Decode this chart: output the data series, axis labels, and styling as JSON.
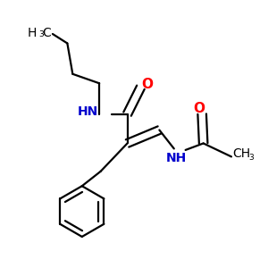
{
  "bg_color": "#ffffff",
  "bond_color": "#000000",
  "N_color": "#0000cd",
  "O_color": "#ff0000",
  "line_width": 1.6,
  "font_size_label": 10,
  "font_size_sub": 6.5,
  "figsize": [
    3.0,
    3.0
  ],
  "dpi": 100,
  "xlim": [
    0.0,
    1.0
  ],
  "ylim": [
    0.0,
    1.0
  ]
}
